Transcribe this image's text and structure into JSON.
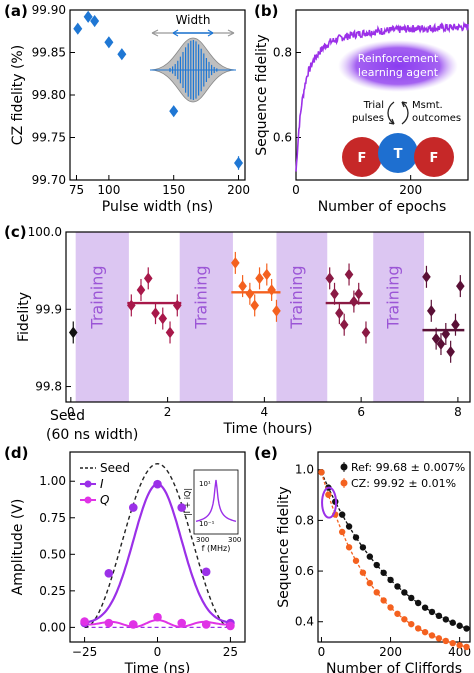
{
  "panels": {
    "a": {
      "label": "(a)"
    },
    "b": {
      "label": "(b)"
    },
    "c": {
      "label": "(c)"
    },
    "d": {
      "label": "(d)"
    },
    "e": {
      "label": "(e)"
    }
  },
  "colors": {
    "blue": "#1f77d4",
    "purple": "#9b30e8",
    "training_band": "#dcc6f2",
    "training_text": "#9b55d6",
    "orange": "#f4611f",
    "black": "#111111",
    "maroon": "#7b0f3a",
    "red_ball": "#c62828",
    "blue_ball": "#1e6fd0",
    "agent_glow": "#8a3cf0"
  },
  "inset_a": {
    "label": "Width"
  },
  "inset_b": {
    "agent_line1": "Reinforcement",
    "agent_line2": "learning agent",
    "trial_line1": "Trial",
    "trial_line2": "pulses",
    "msmt_line1": "Msmt.",
    "msmt_line2": "outcomes",
    "ball_left": "F",
    "ball_mid": "T",
    "ball_right": "F"
  },
  "inset_d": {
    "ylabel": "|I + iQ|",
    "xlabel": "f (MHz)",
    "xticks": [
      "300",
      "300"
    ],
    "yticks": [
      "10¹",
      "10⁻¹"
    ]
  },
  "annotation_c": {
    "seed_line1": "Seed",
    "seed_line2": "(60 ns width)"
  },
  "chart_data": [
    {
      "panel": "a",
      "type": "scatter",
      "xlabel": "Pulse width (ns)",
      "ylabel": "CZ fidelity (%)",
      "xlim": [
        70,
        205
      ],
      "ylim": [
        99.7,
        99.9
      ],
      "xticks": [
        75,
        100,
        150,
        200
      ],
      "xtick_labels": [
        "75",
        "100",
        "150",
        "200"
      ],
      "yticks": [
        99.7,
        99.75,
        99.8,
        99.85,
        99.9
      ],
      "ytick_labels": [
        "99.70",
        "99.75",
        "99.80",
        "99.85",
        "99.90"
      ],
      "x": [
        76,
        84,
        89,
        100,
        110,
        150,
        200
      ],
      "y": [
        99.878,
        99.892,
        99.887,
        99.862,
        99.848,
        99.781,
        99.72
      ],
      "yerr": [
        0.006,
        0.006,
        0.006,
        0.006,
        0.006,
        0.006,
        0.008
      ]
    },
    {
      "panel": "b",
      "type": "line",
      "xlabel": "Number of epochs",
      "ylabel": "Sequence fidelity",
      "xlim": [
        0,
        300
      ],
      "ylim": [
        0.5,
        0.9
      ],
      "xticks": [
        0,
        200
      ],
      "xtick_labels": [
        "0",
        "200"
      ],
      "yticks": [
        0.6,
        0.8
      ],
      "ytick_labels": [
        "0.6",
        "0.8"
      ],
      "x": [
        0,
        5,
        10,
        15,
        20,
        30,
        40,
        50,
        60,
        80,
        100,
        130,
        160,
        200,
        250,
        300
      ],
      "y": [
        0.52,
        0.62,
        0.68,
        0.72,
        0.75,
        0.78,
        0.8,
        0.815,
        0.825,
        0.835,
        0.842,
        0.848,
        0.852,
        0.856,
        0.858,
        0.86
      ]
    },
    {
      "panel": "c",
      "type": "scatter",
      "xlabel": "Time (hours)",
      "ylabel": "Fidelity",
      "xlim": [
        -0.1,
        8.25
      ],
      "ylim": [
        99.78,
        100.0
      ],
      "xticks": [
        0,
        2,
        4,
        6,
        8
      ],
      "xtick_labels": [
        "0",
        "2",
        "4",
        "6",
        "8"
      ],
      "yticks": [
        99.8,
        99.9,
        100.0
      ],
      "ytick_labels": [
        "99.8",
        "99.9",
        "100.0"
      ],
      "training_label": "Training",
      "training_bands": [
        [
          0.1,
          1.2
        ],
        [
          2.25,
          3.35
        ],
        [
          4.25,
          5.3
        ],
        [
          6.25,
          7.3
        ]
      ],
      "groups": [
        {
          "color": "#111111",
          "mean": null,
          "x": [
            0.05
          ],
          "y": [
            99.87
          ]
        },
        {
          "color": "#a8184a",
          "mean": 99.908,
          "x": [
            1.25,
            1.45,
            1.6,
            1.75,
            1.9,
            2.05,
            2.2
          ],
          "y": [
            99.905,
            99.925,
            99.94,
            99.895,
            99.888,
            99.87,
            99.905
          ]
        },
        {
          "color": "#f4611f",
          "mean": 99.922,
          "x": [
            3.4,
            3.55,
            3.7,
            3.8,
            3.9,
            4.05,
            4.15,
            4.25
          ],
          "y": [
            99.96,
            99.93,
            99.92,
            99.905,
            99.94,
            99.945,
            99.925,
            99.898
          ]
        },
        {
          "color": "#8a1a44",
          "mean": 99.908,
          "x": [
            5.35,
            5.45,
            5.55,
            5.65,
            5.75,
            5.85,
            5.95,
            6.1
          ],
          "y": [
            99.94,
            99.92,
            99.895,
            99.88,
            99.945,
            99.91,
            99.92,
            99.87
          ]
        },
        {
          "color": "#5a1036",
          "mean": 99.873,
          "x": [
            7.35,
            7.45,
            7.55,
            7.65,
            7.75,
            7.85,
            7.95,
            8.05
          ],
          "y": [
            99.942,
            99.898,
            99.862,
            99.855,
            99.868,
            99.845,
            99.88,
            99.93
          ]
        }
      ]
    },
    {
      "panel": "d",
      "type": "line",
      "xlabel": "Time (ns)",
      "ylabel": "Amplitude (V)",
      "xlim": [
        -30,
        30
      ],
      "ylim": [
        -0.1,
        1.2
      ],
      "xticks": [
        -25,
        0,
        25
      ],
      "xtick_labels": [
        "−25",
        "0",
        "25"
      ],
      "yticks": [
        0.0,
        0.25,
        0.5,
        0.75,
        1.0
      ],
      "ytick_labels": [
        "0.00",
        "0.25",
        "0.50",
        "0.75",
        "1.00"
      ],
      "legend": [
        "Seed",
        "I",
        "Q"
      ],
      "legend_position": "top-left",
      "seed_peak": 1.12,
      "I_points_x": [
        -25,
        -16.7,
        -8.3,
        0,
        8.3,
        16.7,
        25
      ],
      "I_points_y": [
        0.03,
        0.37,
        0.82,
        0.98,
        0.82,
        0.38,
        0.03
      ],
      "Q_points_x": [
        -25,
        -16.7,
        -8.3,
        0,
        8.3,
        16.7,
        25
      ],
      "Q_points_y": [
        0.04,
        0.03,
        0.02,
        0.07,
        0.03,
        0.02,
        0.01
      ]
    },
    {
      "panel": "e",
      "type": "scatter",
      "xlabel": "Number of Cliffords",
      "ylabel": "Sequence fidelity",
      "xlim": [
        -10,
        430
      ],
      "ylim": [
        0.32,
        1.07
      ],
      "xticks": [
        0,
        200,
        400
      ],
      "xtick_labels": [
        "0",
        "200",
        "400"
      ],
      "yticks": [
        0.4,
        0.6,
        0.8,
        1.0
      ],
      "ytick_labels": [
        "0.4",
        "0.6",
        "0.8",
        "1.0"
      ],
      "legend_position": "top-right",
      "series": [
        {
          "name": "Ref: 99.68 ± 0.007%",
          "color": "#111111",
          "asymptote": 0.25,
          "amplitude": 0.74,
          "decay_per_clifford": 0.99574
        },
        {
          "name": "CZ: 99.92 ± 0.01%",
          "color": "#f4611f",
          "asymptote": 0.25,
          "amplitude": 0.74,
          "decay_per_clifford": 0.99363
        }
      ],
      "x": [
        0,
        20,
        40,
        60,
        80,
        100,
        120,
        140,
        160,
        180,
        200,
        220,
        240,
        260,
        280,
        300,
        320,
        340,
        360,
        380,
        400,
        420
      ]
    }
  ]
}
